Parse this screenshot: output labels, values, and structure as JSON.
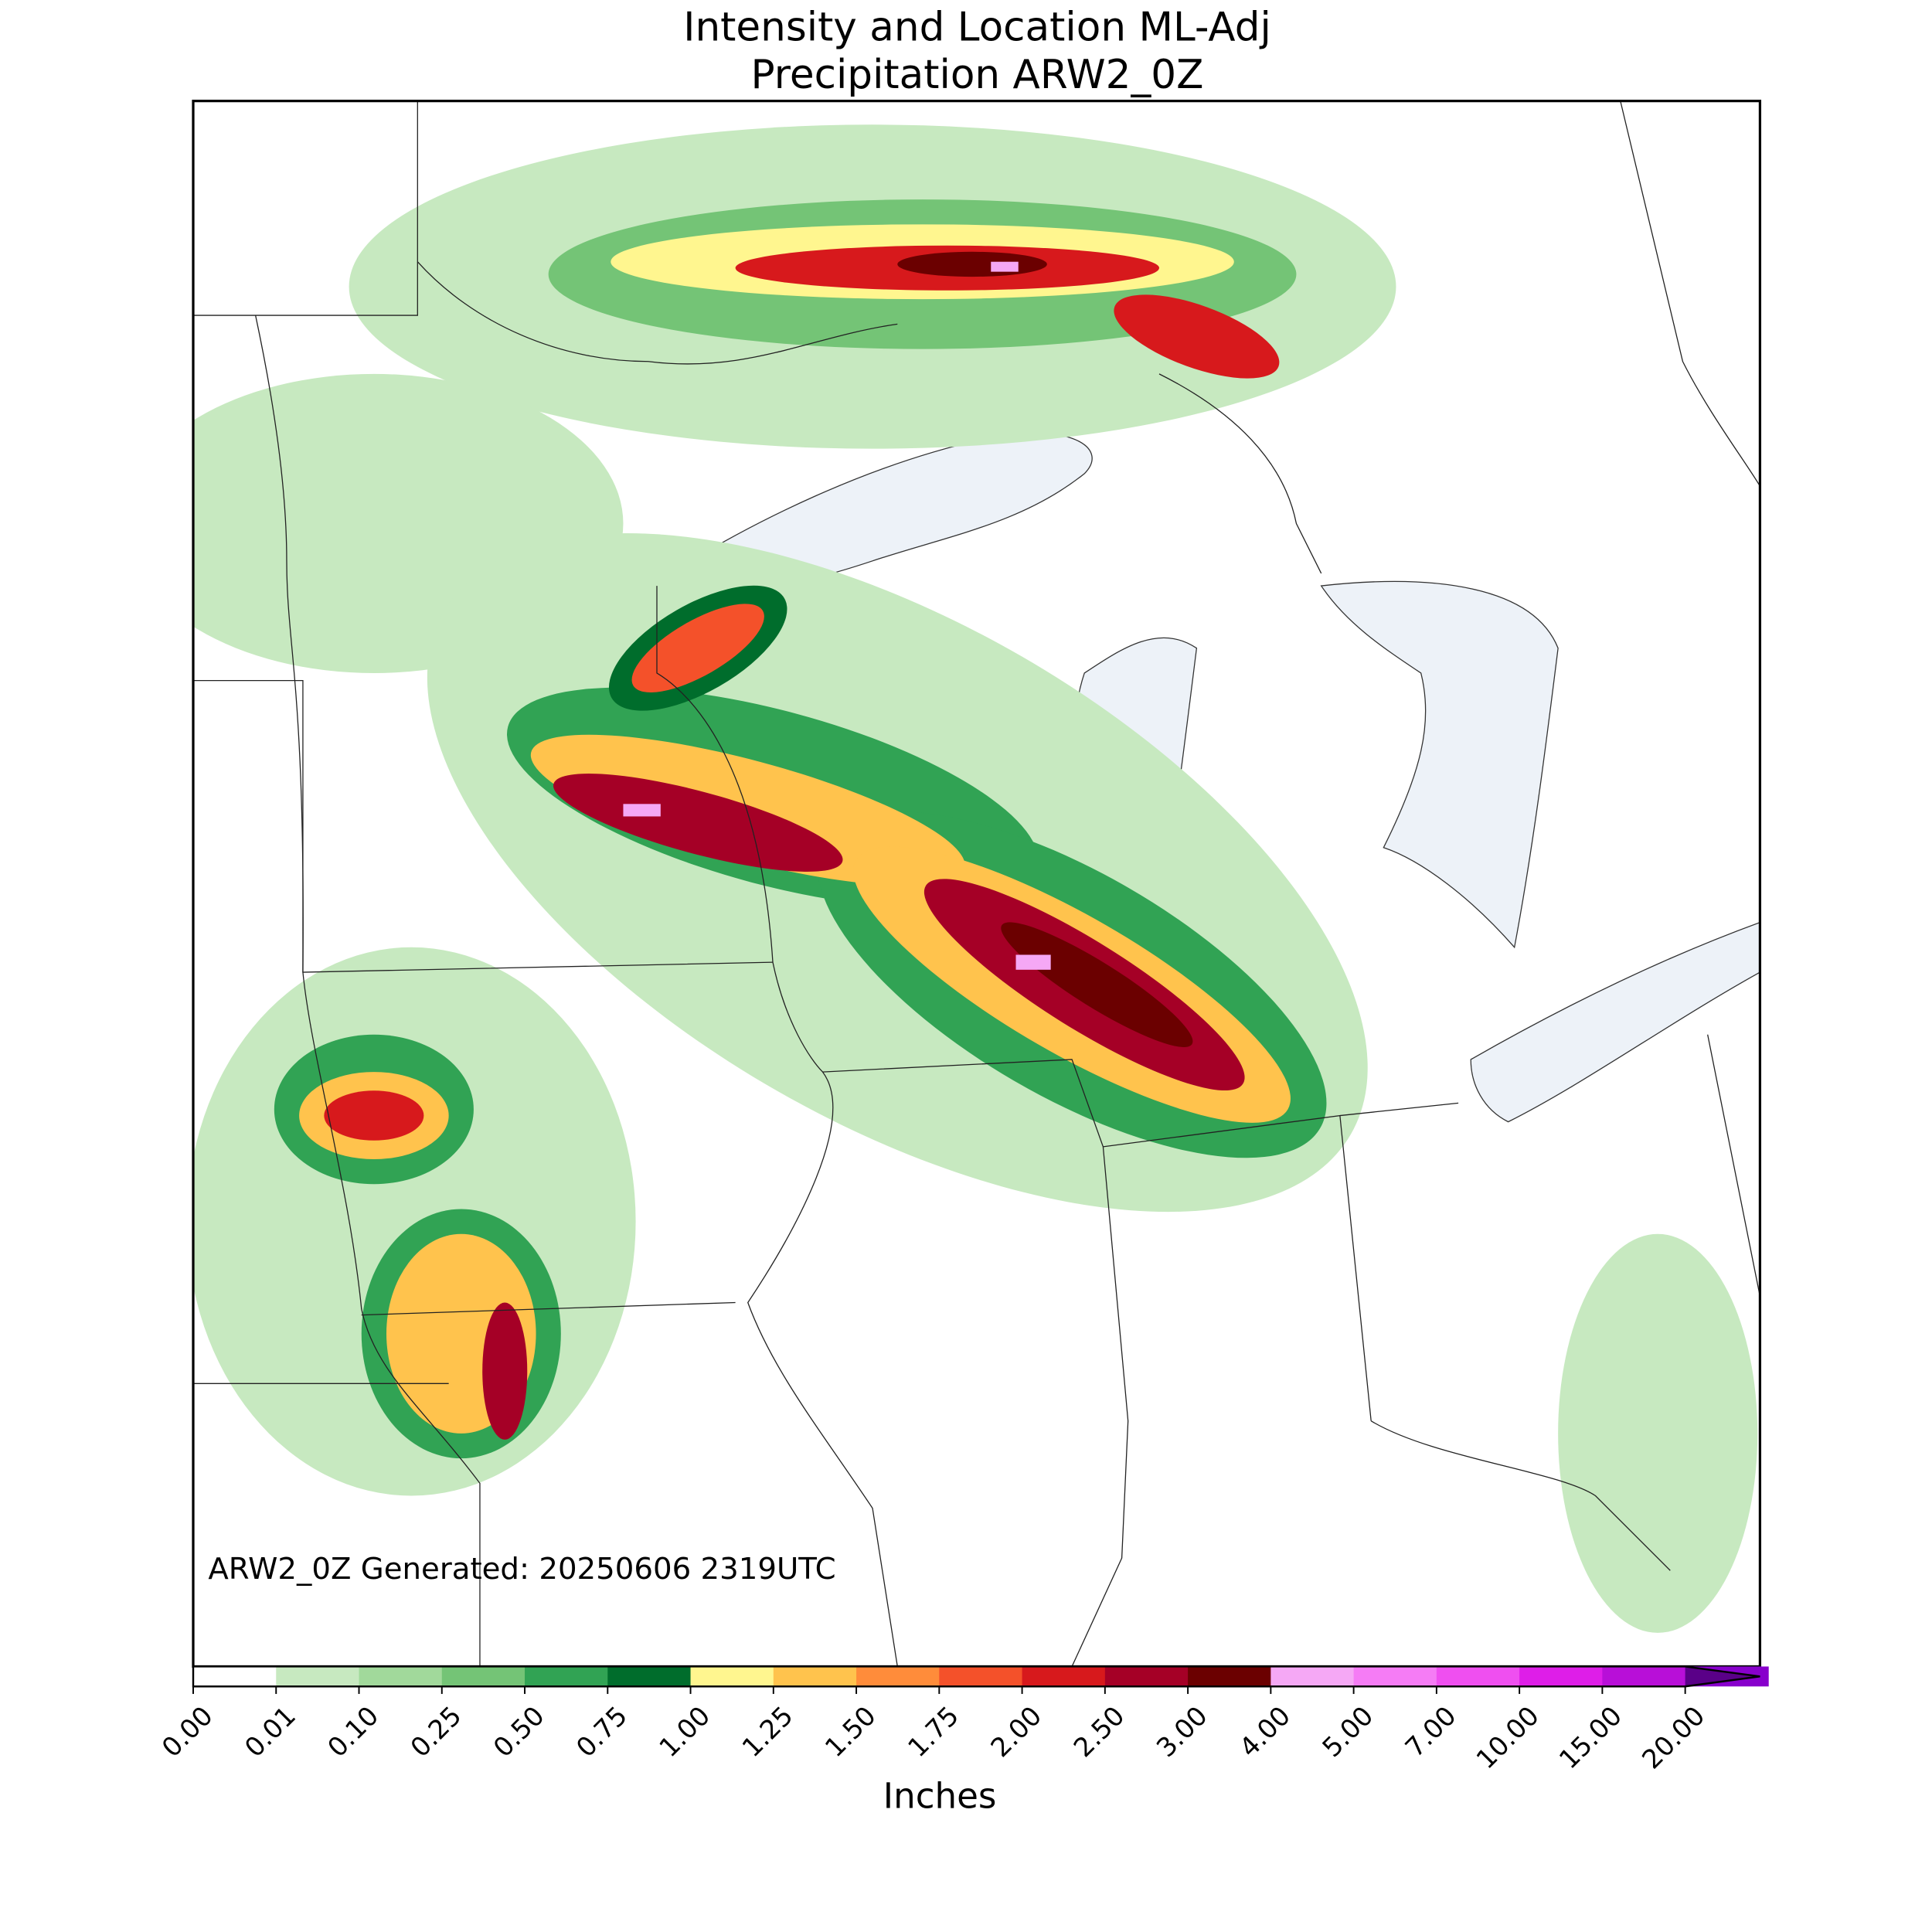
{
  "header": {
    "title": [
      "Intensity and Location ML-Adj",
      "Precipitation ARW2_0Z"
    ]
  },
  "annotation": "ARW2_0Z Generated: 20250606 2319UTC",
  "colorbar": {
    "label": "Inches",
    "ticks": [
      {
        "value": 0,
        "label": "0.00"
      },
      {
        "value": 0.01,
        "label": "0.01"
      },
      {
        "value": 0.1,
        "label": "0.10"
      },
      {
        "value": 0.25,
        "label": "0.25"
      },
      {
        "value": 0.5,
        "label": "0.50"
      },
      {
        "value": 0.75,
        "label": "0.75"
      },
      {
        "value": 1,
        "label": "1.00"
      },
      {
        "value": 1.25,
        "label": "1.25"
      },
      {
        "value": 1.5,
        "label": "1.50"
      },
      {
        "value": 1.75,
        "label": "1.75"
      },
      {
        "value": 2,
        "label": "2.00"
      },
      {
        "value": 2.5,
        "label": "2.50"
      },
      {
        "value": 3,
        "label": "3.00"
      },
      {
        "value": 4,
        "label": "4.00"
      },
      {
        "value": 5,
        "label": "5.00"
      },
      {
        "value": 7,
        "label": "7.00"
      },
      {
        "value": 10,
        "label": "10.00"
      },
      {
        "value": 15,
        "label": "15.00"
      },
      {
        "value": 20,
        "label": "20.00"
      }
    ],
    "colors": [
      "#ffffff",
      "#c7e9c0",
      "#a1d99b",
      "#74c476",
      "#31a354",
      "#006d2c",
      "#fff68f",
      "#ffc34d",
      "#ff8c3a",
      "#f4512a",
      "#d7191c",
      "#a50026",
      "#6b0000",
      "#f5a8f5",
      "#f57cf5",
      "#ef4ff0",
      "#de1ee8",
      "#b80fd8",
      "#8800cc"
    ],
    "extend_color": "#5a0088"
  }
}
